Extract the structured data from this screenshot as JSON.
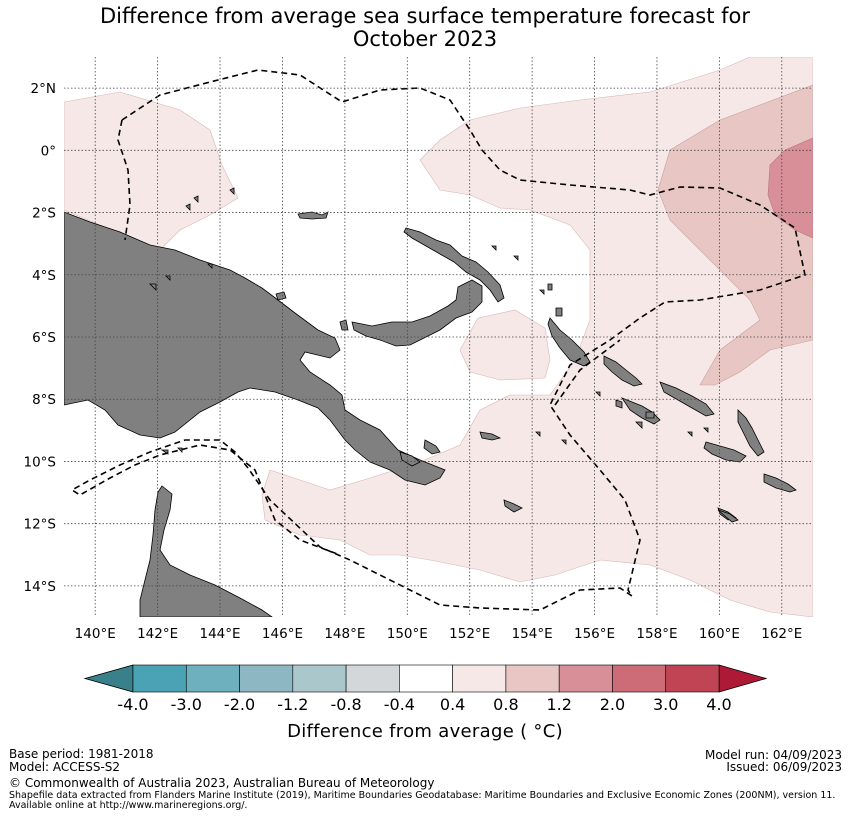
{
  "title": {
    "line1": "Difference from average sea surface temperature forecast for",
    "line2": "October 2023"
  },
  "map": {
    "lon_labels": [
      "140°E",
      "142°E",
      "144°E",
      "146°E",
      "148°E",
      "150°E",
      "152°E",
      "154°E",
      "156°E",
      "158°E",
      "160°E",
      "162°E"
    ],
    "lat_labels": [
      "2°N",
      "0°",
      "2°S",
      "4°S",
      "6°S",
      "8°S",
      "10°S",
      "12°S",
      "14°S"
    ],
    "lon_range": [
      139,
      163
    ],
    "lat_range": [
      -15,
      3
    ],
    "colors": {
      "land": "#808080",
      "anom_0_4": "#f5e8e7",
      "anom_0_8": "#e8c6c3",
      "anom_1_2": "#d98f98",
      "boundary": "#000000"
    }
  },
  "colorbar": {
    "labels": [
      "-4.0",
      "-3.0",
      "-2.0",
      "-1.2",
      "-0.8",
      "-0.4",
      "0.4",
      "0.8",
      "1.2",
      "2.0",
      "3.0",
      "4.0"
    ],
    "colors": [
      "#4aa3b4",
      "#6fb0bf",
      "#8db8c3",
      "#aac7cc",
      "#d3d7d9",
      "#ffffff",
      "#f5e8e7",
      "#e8c6c3",
      "#d98f98",
      "#cd6b76",
      "#c04454"
    ],
    "extend_low": "#3a808b",
    "extend_high": "#ae1a35",
    "title": "Difference from average ( °C)"
  },
  "footer": {
    "base_period": "Base period: 1981-2018",
    "model": "Model: ACCESS-S2",
    "model_run": "Model run: 04/09/2023",
    "issued": "Issued: 06/09/2023",
    "copyright": "© Commonwealth of Australia 2023, Australian Bureau of Meteorology",
    "shapefile_line1": "Shapefile data extracted from Flanders Marine Institute (2019), Maritime Boundaries Geodatabase: Maritime Boundaries and Exclusive Economic Zones (200NM), version 11.",
    "shapefile_line2": "Available online at http://www.marineregions.org/."
  }
}
